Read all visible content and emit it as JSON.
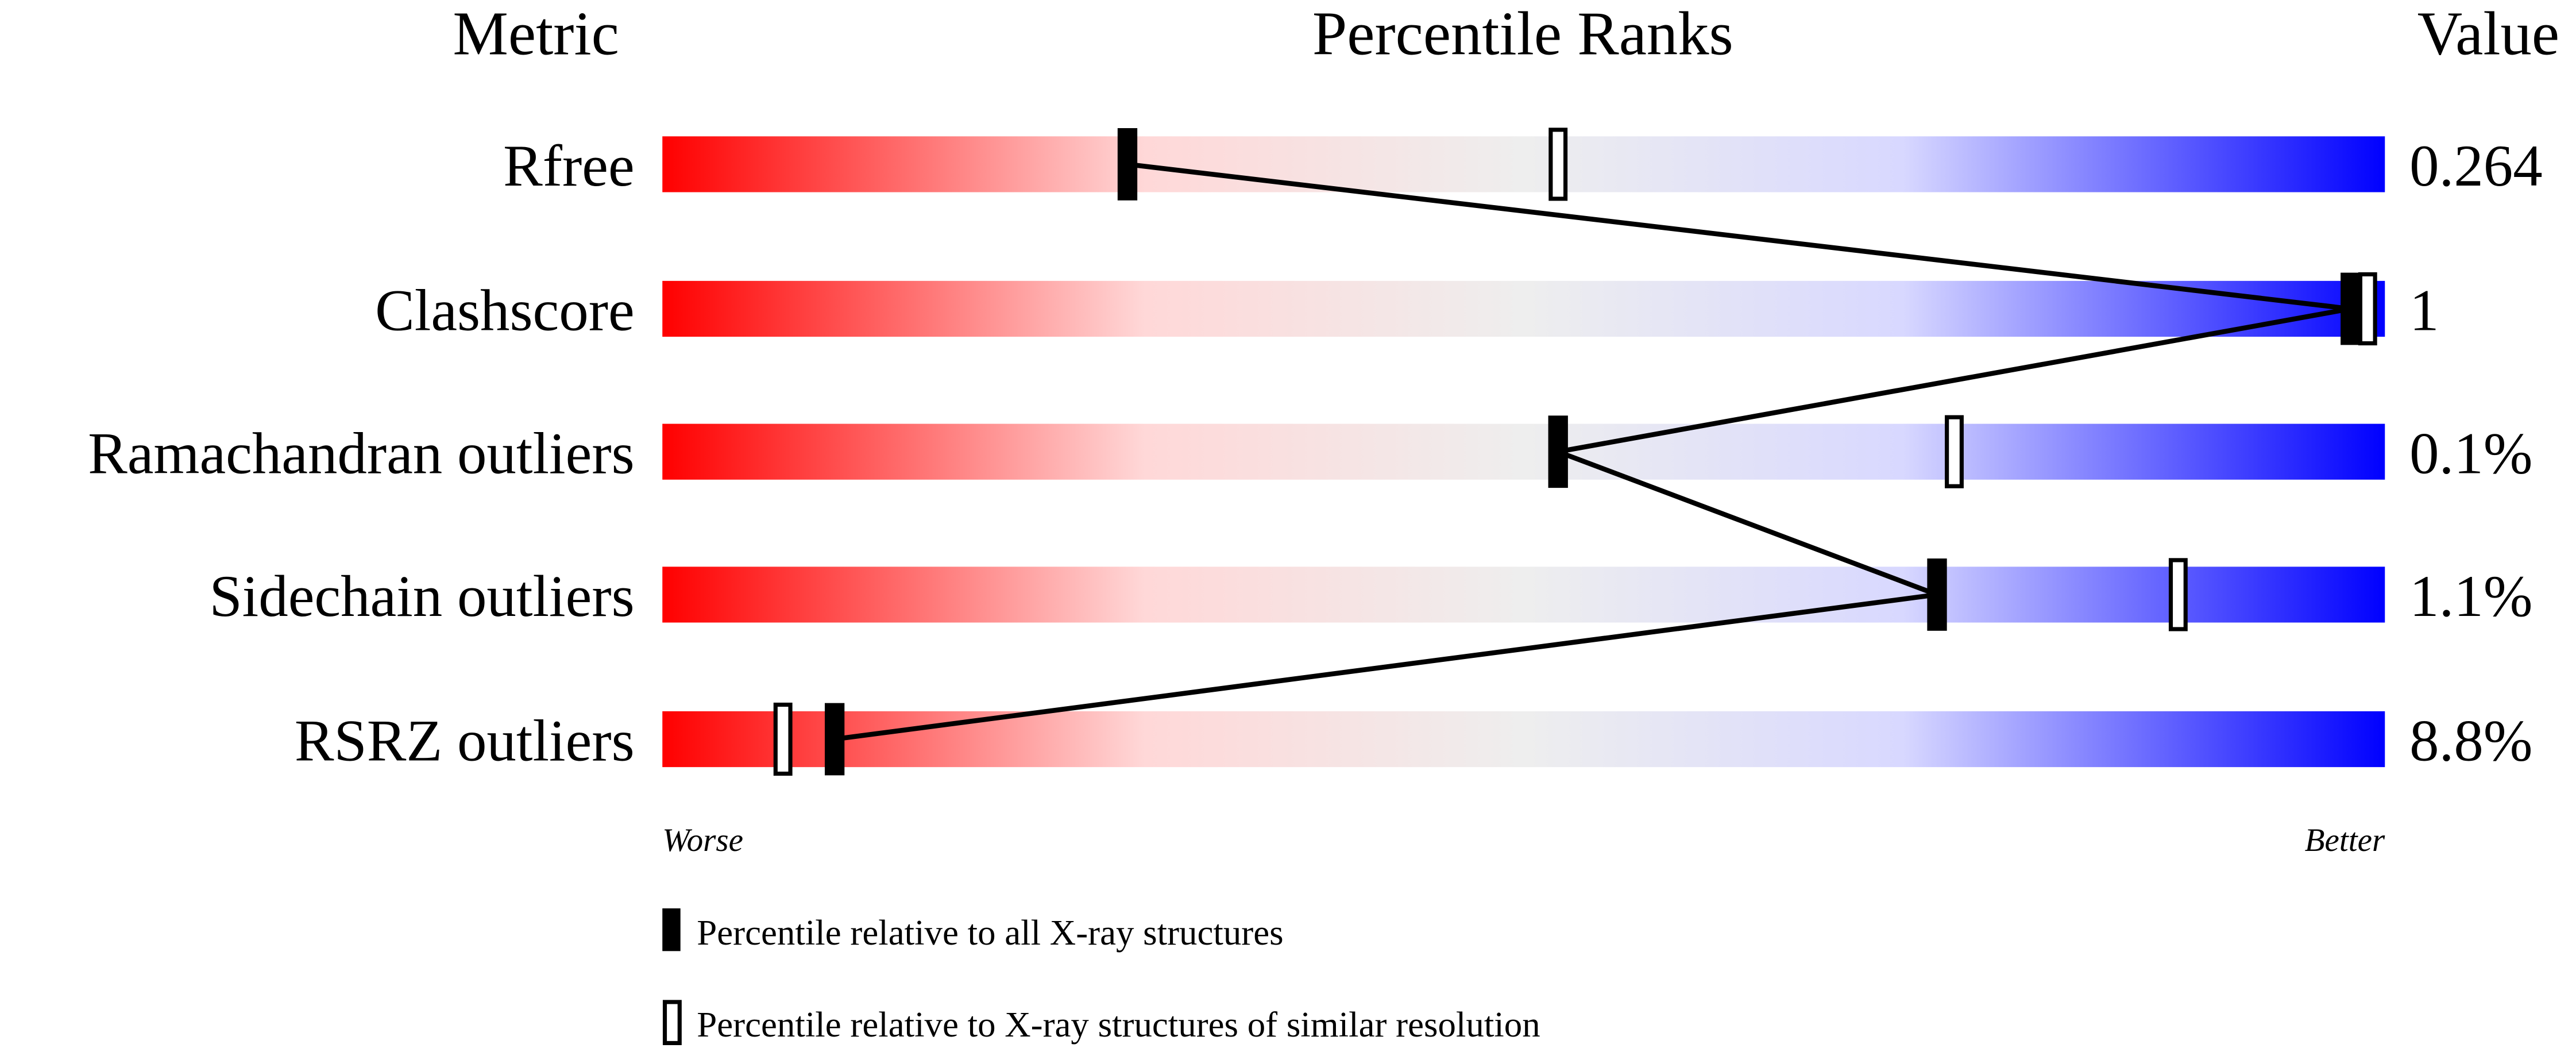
{
  "chart_data": {
    "type": "bar",
    "title": "Percentile Ranks",
    "metric_header": "Metric",
    "value_header": "Value",
    "xlim": [
      0,
      100
    ],
    "axis_left_label": "Worse",
    "axis_right_label": "Better",
    "gradient_colors": [
      "#ff0000",
      "#eeeeee",
      "#0000ff"
    ],
    "categories": [
      "Rfree",
      "Clashscore",
      "Ramachandran outliers",
      "Sidechain outliers",
      "RSRZ outliers"
    ],
    "values_text": [
      "0.264",
      "1",
      "0.1%",
      "1.1%",
      "8.8%"
    ],
    "series": [
      {
        "name": "Percentile relative to all X-ray structures",
        "marker": "filled",
        "values": [
          27,
          98,
          52,
          74,
          10
        ]
      },
      {
        "name": "Percentile relative to X-ray structures of similar resolution",
        "marker": "open",
        "values": [
          52,
          99,
          75,
          88,
          7
        ]
      }
    ],
    "legend": "bottom"
  }
}
